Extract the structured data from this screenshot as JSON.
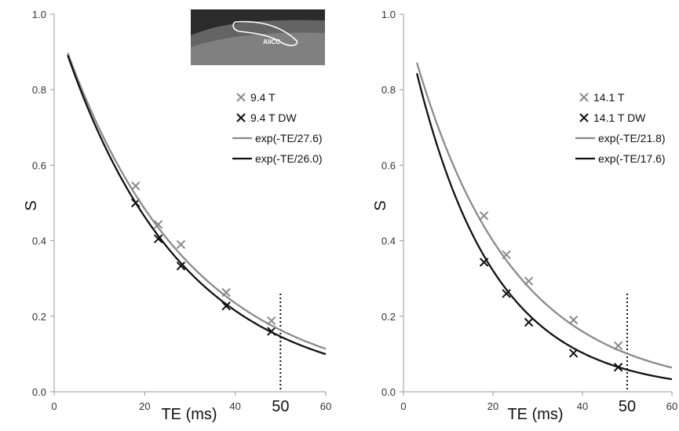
{
  "chart_data": [
    {
      "type": "scatter",
      "title": "",
      "xlabel": "TE (ms)",
      "ylabel": "S",
      "xlim": [
        0,
        60
      ],
      "ylim": [
        0,
        1.0
      ],
      "x_ticks": [
        "0",
        "20",
        "40",
        "60"
      ],
      "y_ticks": [
        "0.0",
        "0.2",
        "0.4",
        "0.6",
        "0.8",
        "1.0"
      ],
      "marker_line": {
        "x": 50,
        "label": "50"
      },
      "legend_position": "right",
      "inset_image_label": "AllCC",
      "series": [
        {
          "name": "9.4 T",
          "kind": "points",
          "marker": "x",
          "color": "#8a8a8a",
          "x": [
            18,
            23,
            28,
            38,
            48
          ],
          "y": [
            0.545,
            0.443,
            0.39,
            0.263,
            0.188
          ]
        },
        {
          "name": "9.4 T DW",
          "kind": "points",
          "marker": "x",
          "color": "#111111",
          "x": [
            18,
            23,
            28,
            38,
            48
          ],
          "y": [
            0.5,
            0.405,
            0.333,
            0.227,
            0.16
          ]
        },
        {
          "name": "exp(-TE/27.6)",
          "kind": "curve",
          "tau": 27.6,
          "x_range": [
            3,
            60
          ],
          "color": "#8a8a8a"
        },
        {
          "name": "exp(-TE/26.0)",
          "kind": "curve",
          "tau": 26.0,
          "x_range": [
            3,
            60
          ],
          "color": "#111111"
        }
      ]
    },
    {
      "type": "scatter",
      "title": "",
      "xlabel": "TE (ms)",
      "ylabel": "S",
      "xlim": [
        0,
        60
      ],
      "ylim": [
        0,
        1.0
      ],
      "x_ticks": [
        "0",
        "20",
        "40",
        "60"
      ],
      "y_ticks": [
        "0.0",
        "0.2",
        "0.4",
        "0.6",
        "0.8",
        "1.0"
      ],
      "marker_line": {
        "x": 50,
        "label": "50"
      },
      "legend_position": "right",
      "series": [
        {
          "name": "14.1 T",
          "kind": "points",
          "marker": "x",
          "color": "#8a8a8a",
          "x": [
            18,
            23,
            28,
            38,
            48
          ],
          "y": [
            0.466,
            0.363,
            0.293,
            0.19,
            0.122
          ]
        },
        {
          "name": "14.1 T DW",
          "kind": "points",
          "marker": "x",
          "color": "#111111",
          "x": [
            18,
            23,
            28,
            38,
            48
          ],
          "y": [
            0.343,
            0.26,
            0.184,
            0.102,
            0.065
          ]
        },
        {
          "name": "exp(-TE/21.8)",
          "kind": "curve",
          "tau": 21.8,
          "x_range": [
            3,
            60
          ],
          "color": "#8a8a8a"
        },
        {
          "name": "exp(-TE/17.6)",
          "kind": "curve",
          "tau": 17.6,
          "x_range": [
            3,
            60
          ],
          "color": "#111111"
        }
      ]
    }
  ]
}
